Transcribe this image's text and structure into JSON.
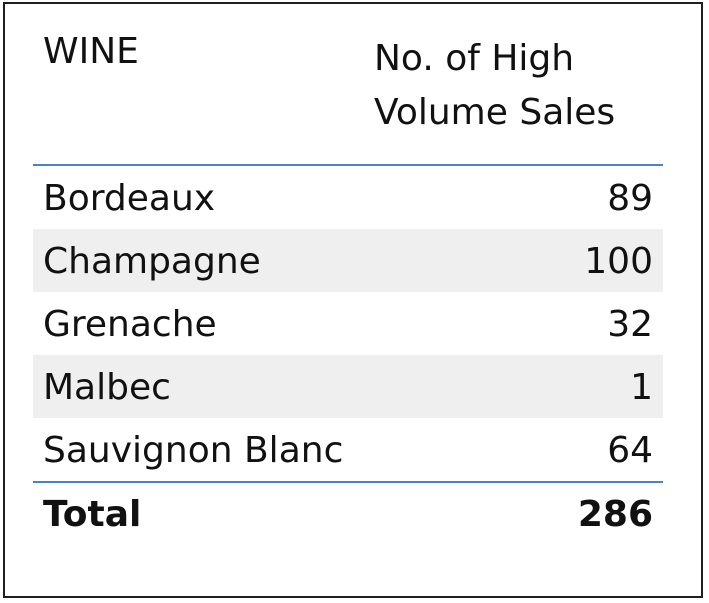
{
  "table": {
    "headers": {
      "wine": "WINE",
      "sales_line1": "No. of High",
      "sales_line2": "Volume Sales"
    },
    "rows": [
      {
        "wine": "Bordeaux",
        "sales": "89"
      },
      {
        "wine": "Champagne",
        "sales": "100"
      },
      {
        "wine": "Grenache",
        "sales": "32"
      },
      {
        "wine": "Malbec",
        "sales": "1"
      },
      {
        "wine": "Sauvignon Blanc",
        "sales": "64"
      }
    ],
    "total": {
      "label": "Total",
      "value": "286"
    }
  },
  "colors": {
    "divider": "#4a83c4",
    "row_shade": "#efefef",
    "border": "#1f1f1f"
  }
}
